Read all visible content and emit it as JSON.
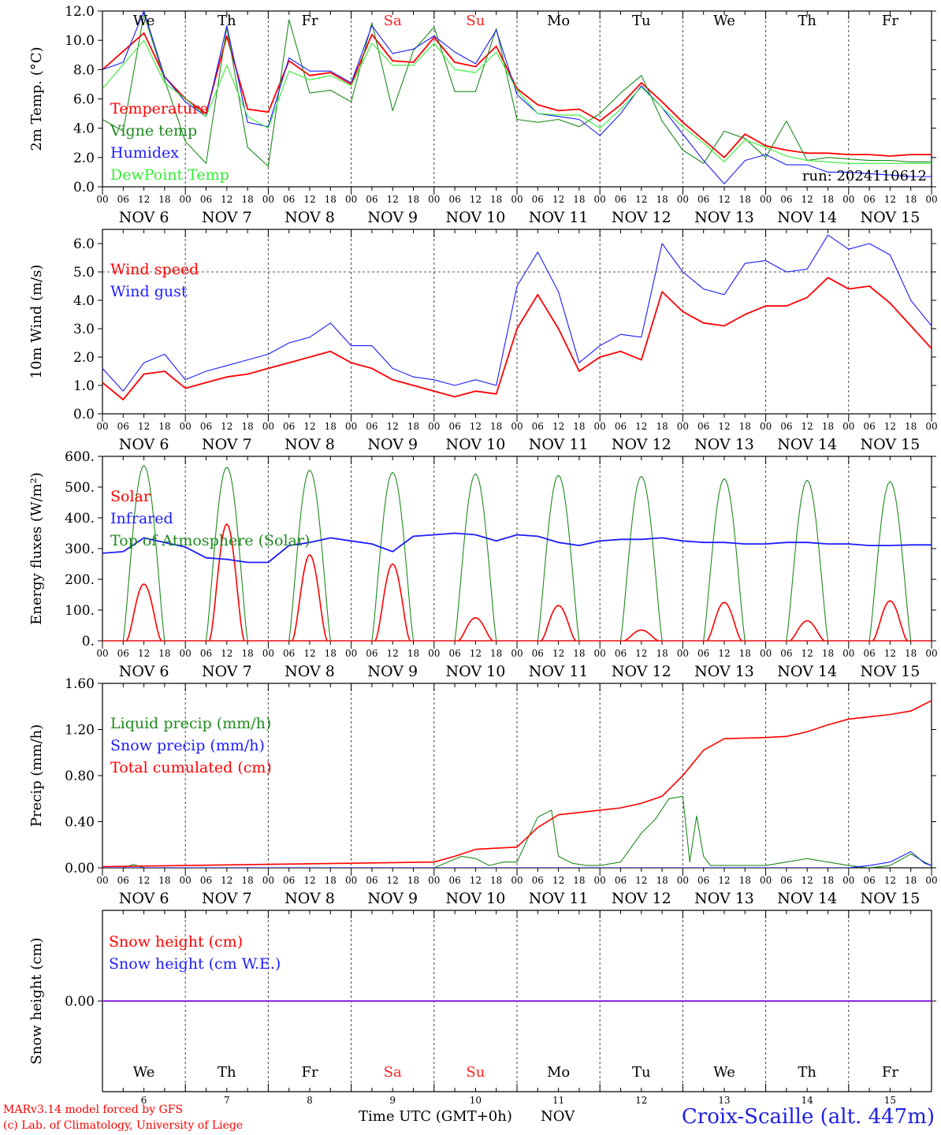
{
  "footer": {
    "model": "MARv3.14 model forced by GFS",
    "credit": "(c) Lab. of Climatology, University of Liege",
    "xtitle": "Time UTC (GMT+0h)",
    "month": "NOV",
    "station": "Croix-Scaille (alt. 447m)"
  },
  "colors": {
    "red": "#ff0000",
    "darkgreen": "#1f8a1f",
    "blue": "#1c1cff",
    "lightgreen": "#33ee33",
    "purple": "#8a2be2",
    "weekend": "#ff2020"
  },
  "chart_data": [
    {
      "type": "line",
      "ylabel": "2m Temp. (°C)",
      "ylim": [
        0,
        12
      ],
      "yticks": [
        "0.0",
        "2.0",
        "4.0",
        "6.0",
        "8.0",
        "10.0",
        "12.0"
      ],
      "x_hour_ticks": [
        "00",
        "06",
        "12",
        "18"
      ],
      "x_day_labels": [
        "NOV  6",
        "NOV  7",
        "NOV  8",
        "NOV  9",
        "NOV 10",
        "NOV 11",
        "NOV 12",
        "NOV 13",
        "NOV 14",
        "NOV 15"
      ],
      "weekday_labels": [
        "We",
        "Th",
        "Fr",
        "Sa",
        "Su",
        "Mo",
        "Tu",
        "We",
        "Th",
        "Fr"
      ],
      "annotation": "run: 2024110612",
      "series": [
        {
          "name": "Temperature",
          "color": "red",
          "x": [
            0,
            12,
            18,
            24,
            30,
            36,
            42,
            48,
            54,
            60,
            66,
            72,
            78,
            84,
            90,
            96,
            102,
            108,
            114,
            120,
            126,
            132,
            138,
            144,
            150,
            156,
            162,
            168,
            174,
            180,
            186,
            192,
            198,
            204,
            210,
            216,
            222,
            228,
            234,
            240
          ],
          "values": [
            8.0,
            10.5,
            7.5,
            6.0,
            5.0,
            10.3,
            5.3,
            5.1,
            8.6,
            7.6,
            7.8,
            7.0,
            10.4,
            8.6,
            8.5,
            10.2,
            8.5,
            8.2,
            9.6,
            6.7,
            5.6,
            5.2,
            5.3,
            4.5,
            5.6,
            7.1,
            5.8,
            4.4,
            3.2,
            2.0,
            3.6,
            2.8,
            2.5,
            2.3,
            2.3,
            2.2,
            2.2,
            2.1,
            2.2,
            2.2
          ]
        },
        {
          "name": "Vigne temp",
          "color": "darkgreen",
          "x": [
            0,
            6,
            12,
            18,
            24,
            30,
            36,
            42,
            48,
            54,
            60,
            66,
            72,
            78,
            84,
            90,
            96,
            102,
            108,
            114,
            120,
            126,
            132,
            138,
            144,
            150,
            156,
            162,
            168,
            174,
            180,
            186,
            192,
            198,
            204,
            210,
            216,
            222,
            228,
            234,
            240
          ],
          "values": [
            4.6,
            3.8,
            11.8,
            7.3,
            3.1,
            1.6,
            10.9,
            2.7,
            1.4,
            11.4,
            6.4,
            6.6,
            5.8,
            11.2,
            5.2,
            9.3,
            10.9,
            6.5,
            6.5,
            10.8,
            4.6,
            4.4,
            4.6,
            4.1,
            5.0,
            6.4,
            7.6,
            4.5,
            2.5,
            1.6,
            3.8,
            3.3,
            2.0,
            4.5,
            1.8,
            2.0,
            1.9,
            1.8,
            1.8,
            1.7,
            1.7
          ]
        },
        {
          "name": "Humidex",
          "color": "blue",
          "x": [
            0,
            6,
            12,
            18,
            24,
            30,
            36,
            42,
            48,
            54,
            60,
            66,
            72,
            78,
            84,
            90,
            96,
            102,
            108,
            114,
            120,
            126,
            132,
            138,
            144,
            150,
            156,
            162,
            168,
            174,
            180,
            186,
            192,
            198,
            204,
            210,
            216,
            222,
            228,
            234,
            240
          ],
          "values": [
            8.0,
            8.5,
            12.0,
            7.5,
            5.8,
            4.8,
            11.0,
            4.4,
            4.1,
            8.8,
            7.9,
            7.9,
            7.1,
            11.0,
            9.1,
            9.4,
            10.3,
            9.2,
            8.4,
            10.7,
            6.3,
            5.0,
            4.8,
            4.6,
            3.5,
            5.0,
            6.9,
            5.4,
            3.6,
            1.8,
            0.2,
            1.8,
            2.2,
            1.5,
            1.5,
            1.0,
            1.0,
            0.9,
            0.8,
            0.7,
            0.7
          ]
        },
        {
          "name": "DewPoint Temp",
          "color": "lightgreen",
          "x": [
            0,
            12,
            18,
            24,
            30,
            36,
            42,
            48,
            54,
            60,
            66,
            72,
            78,
            84,
            90,
            96,
            102,
            108,
            114,
            120,
            126,
            132,
            138,
            144,
            150,
            156,
            162,
            168,
            174,
            180,
            186,
            192,
            198,
            204,
            210,
            216,
            222,
            228,
            234,
            240
          ],
          "values": [
            6.7,
            10.0,
            7.1,
            6.0,
            4.8,
            8.3,
            4.8,
            4.0,
            7.9,
            7.3,
            7.6,
            6.9,
            9.8,
            8.3,
            8.3,
            9.8,
            8.0,
            7.8,
            9.2,
            6.6,
            5.0,
            4.9,
            4.9,
            4.0,
            5.3,
            6.8,
            5.4,
            4.1,
            3.0,
            1.7,
            3.2,
            2.7,
            2.1,
            1.8,
            1.7,
            1.6,
            1.6,
            1.6,
            1.6,
            1.6
          ]
        }
      ]
    },
    {
      "type": "line",
      "ylabel": "10m Wind (m/s)",
      "ylim": [
        0,
        6.5
      ],
      "yticks": [
        "0.0",
        "1.0",
        "2.0",
        "3.0",
        "4.0",
        "5.0",
        "6.0"
      ],
      "reference_line": 5.0,
      "x_day_labels": [
        "NOV  6",
        "NOV  7",
        "NOV  8",
        "NOV  9",
        "NOV 10",
        "NOV 11",
        "NOV 12",
        "NOV 13",
        "NOV 14",
        "NOV 15"
      ],
      "series": [
        {
          "name": "Wind speed",
          "color": "red",
          "x": [
            0,
            6,
            12,
            18,
            24,
            30,
            36,
            42,
            48,
            54,
            60,
            66,
            72,
            78,
            84,
            90,
            96,
            102,
            108,
            114,
            120,
            126,
            132,
            138,
            144,
            150,
            156,
            162,
            168,
            174,
            180,
            186,
            192,
            198,
            204,
            210,
            216,
            222,
            228,
            234,
            240
          ],
          "values": [
            1.1,
            0.5,
            1.4,
            1.5,
            0.9,
            1.1,
            1.3,
            1.4,
            1.6,
            1.8,
            2.0,
            2.2,
            1.8,
            1.6,
            1.2,
            1.0,
            0.8,
            0.6,
            0.8,
            0.7,
            3.0,
            4.2,
            3.0,
            1.5,
            2.0,
            2.2,
            1.9,
            4.3,
            3.6,
            3.2,
            3.1,
            3.5,
            3.8,
            3.8,
            4.1,
            4.8,
            4.4,
            4.5,
            3.9,
            3.1,
            2.3
          ]
        },
        {
          "name": "Wind gust",
          "color": "blue",
          "x": [
            0,
            6,
            12,
            18,
            24,
            30,
            36,
            42,
            48,
            54,
            60,
            66,
            72,
            78,
            84,
            90,
            96,
            102,
            108,
            114,
            120,
            126,
            132,
            138,
            144,
            150,
            156,
            162,
            168,
            174,
            180,
            186,
            192,
            198,
            204,
            210,
            216,
            222,
            228,
            234,
            240
          ],
          "values": [
            1.6,
            0.8,
            1.8,
            2.1,
            1.2,
            1.5,
            1.7,
            1.9,
            2.1,
            2.5,
            2.7,
            3.2,
            2.4,
            2.4,
            1.6,
            1.3,
            1.2,
            1.0,
            1.2,
            1.0,
            4.5,
            5.7,
            4.3,
            1.8,
            2.4,
            2.8,
            2.7,
            6.0,
            5.0,
            4.4,
            4.2,
            5.3,
            5.4,
            5.0,
            5.1,
            6.3,
            5.8,
            6.0,
            5.6,
            4.0,
            3.1
          ]
        }
      ]
    },
    {
      "type": "line",
      "ylabel": "Energy fluxes (W/m²)",
      "ylim": [
        0,
        600
      ],
      "yticks": [
        "0.",
        "100.",
        "200.",
        "300.",
        "400.",
        "500.",
        "600."
      ],
      "x_day_labels": [
        "NOV  6",
        "NOV  7",
        "NOV  8",
        "NOV  9",
        "NOV 10",
        "NOV 11",
        "NOV 12",
        "NOV 13",
        "NOV 14",
        "NOV 15"
      ],
      "series": [
        {
          "name": "Solar",
          "color": "red",
          "peaks": [
            185,
            380,
            280,
            250,
            75,
            115,
            35,
            125,
            65,
            130
          ]
        },
        {
          "name": "Infrared",
          "color": "blue",
          "x": [
            0,
            6,
            12,
            18,
            24,
            30,
            36,
            42,
            48,
            54,
            60,
            66,
            72,
            78,
            84,
            90,
            96,
            102,
            108,
            114,
            120,
            126,
            132,
            138,
            144,
            150,
            156,
            162,
            168,
            174,
            180,
            186,
            192,
            198,
            204,
            210,
            216,
            222,
            228,
            234,
            240
          ],
          "values": [
            285,
            290,
            335,
            320,
            305,
            270,
            265,
            255,
            255,
            310,
            320,
            335,
            325,
            315,
            290,
            340,
            345,
            350,
            345,
            325,
            345,
            340,
            320,
            310,
            325,
            330,
            330,
            335,
            325,
            320,
            320,
            315,
            315,
            320,
            320,
            315,
            315,
            310,
            310,
            312,
            312
          ]
        },
        {
          "name": "Top of Atmosphere (Solar)",
          "color": "darkgreen",
          "peaks": [
            570,
            565,
            555,
            548,
            543,
            538,
            535,
            527,
            522,
            518
          ]
        }
      ]
    },
    {
      "type": "line",
      "ylabel": "Precip (mm/h)",
      "ylim": [
        0,
        1.6
      ],
      "yticks": [
        "0.00",
        "0.40",
        "0.80",
        "1.20",
        "1.60"
      ],
      "x_day_labels": [
        "NOV  6",
        "NOV  7",
        "NOV  8",
        "NOV  9",
        "NOV 10",
        "NOV 11",
        "NOV 12",
        "NOV 13",
        "NOV 14",
        "NOV 15"
      ],
      "series": [
        {
          "name": "Liquid precip (mm/h)",
          "color": "darkgreen",
          "x": [
            0,
            6,
            9,
            12,
            24,
            48,
            72,
            96,
            100,
            104,
            108,
            112,
            116,
            120,
            126,
            130,
            132,
            136,
            140,
            144,
            150,
            156,
            160,
            164,
            168,
            170,
            172,
            174,
            176,
            180,
            192,
            198,
            204,
            210,
            216,
            222,
            228,
            234,
            238,
            240
          ],
          "values": [
            0,
            0,
            0.03,
            0,
            0,
            0,
            0,
            0,
            0.05,
            0.1,
            0.08,
            0.02,
            0.05,
            0.05,
            0.44,
            0.5,
            0.1,
            0.04,
            0.02,
            0.02,
            0.05,
            0.3,
            0.42,
            0.6,
            0.62,
            0.05,
            0.45,
            0.1,
            0.02,
            0.02,
            0.02,
            0.05,
            0.08,
            0.05,
            0.02,
            0.0,
            0.02,
            0.12,
            0.05,
            0.02
          ]
        },
        {
          "name": "Snow precip (mm/h)",
          "color": "blue",
          "x": [
            0,
            216,
            222,
            228,
            234,
            238,
            240
          ],
          "values": [
            0,
            0,
            0.02,
            0.05,
            0.14,
            0.04,
            0.02
          ]
        },
        {
          "name": "Total cumulated (cm)",
          "color": "red",
          "x": [
            0,
            24,
            48,
            72,
            96,
            102,
            108,
            114,
            120,
            126,
            132,
            144,
            150,
            156,
            162,
            168,
            174,
            180,
            192,
            198,
            204,
            210,
            216,
            222,
            228,
            234,
            240
          ],
          "values": [
            0.01,
            0.02,
            0.03,
            0.04,
            0.05,
            0.1,
            0.16,
            0.17,
            0.18,
            0.35,
            0.46,
            0.5,
            0.52,
            0.56,
            0.62,
            0.8,
            1.02,
            1.12,
            1.13,
            1.14,
            1.18,
            1.24,
            1.29,
            1.31,
            1.33,
            1.36,
            1.45
          ]
        }
      ]
    },
    {
      "type": "line",
      "ylabel": "Snow height (cm)",
      "yticks": [
        "0.00"
      ],
      "x_day_numbers": [
        "6",
        "7",
        "8",
        "9",
        "10",
        "11",
        "12",
        "13",
        "14",
        "15"
      ],
      "weekday_labels": [
        "We",
        "Th",
        "Fr",
        "Sa",
        "Su",
        "Mo",
        "Tu",
        "We",
        "Th",
        "Fr"
      ],
      "series": [
        {
          "name": "Snow height (cm)",
          "color": "red",
          "x": [
            0,
            240
          ],
          "values": [
            0,
            0
          ]
        },
        {
          "name": "Snow height (cm W.E.)",
          "color": "blue",
          "x": [
            0,
            240
          ],
          "values": [
            0,
            0
          ]
        }
      ]
    }
  ]
}
